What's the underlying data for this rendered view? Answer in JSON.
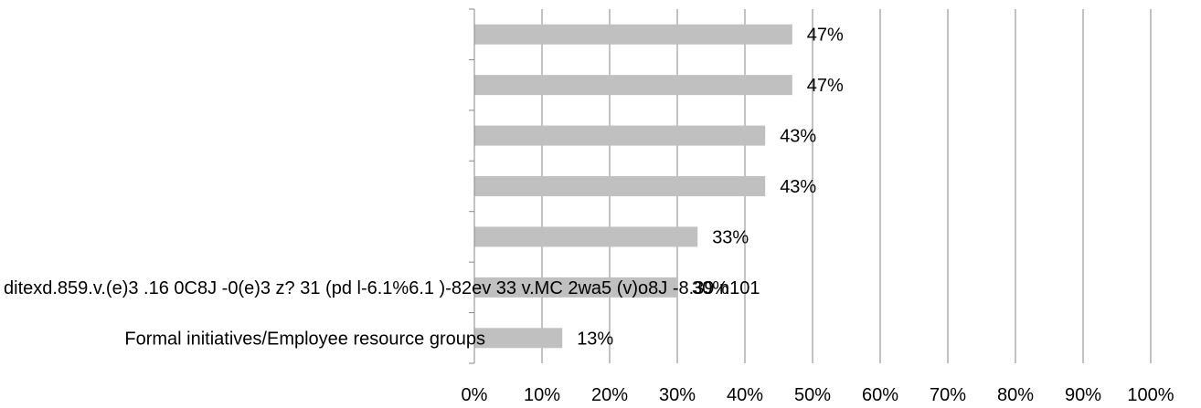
{
  "chart_data": {
    "type": "bar",
    "orientation": "horizontal",
    "categories": [
      "",
      "",
      "",
      "",
      "",
      "ditexd.859.v.(e)3 .16 0C8J -0(e)3 z? 31 (pd l-6.1%6.1 )-82ev 33 v.MC 2wa5 (v)o8J -8.39 n101",
      "Formal initiatives/Employee resource groups"
    ],
    "values": [
      47,
      47,
      43,
      43,
      33,
      30,
      13
    ],
    "data_labels": [
      "47%",
      "47%",
      "43%",
      "43%",
      "33%",
      "30%",
      "13%"
    ],
    "xlim": [
      0,
      100
    ],
    "x_ticks": [
      "0%",
      "10%",
      "20%",
      "30%",
      "40%",
      "50%",
      "60%",
      "70%",
      "80%",
      "90%",
      "100%"
    ],
    "grid": "vertical",
    "bar_color": "#c0c0c0",
    "grid_color": "#878787",
    "title": "",
    "xlabel": "",
    "ylabel": ""
  }
}
